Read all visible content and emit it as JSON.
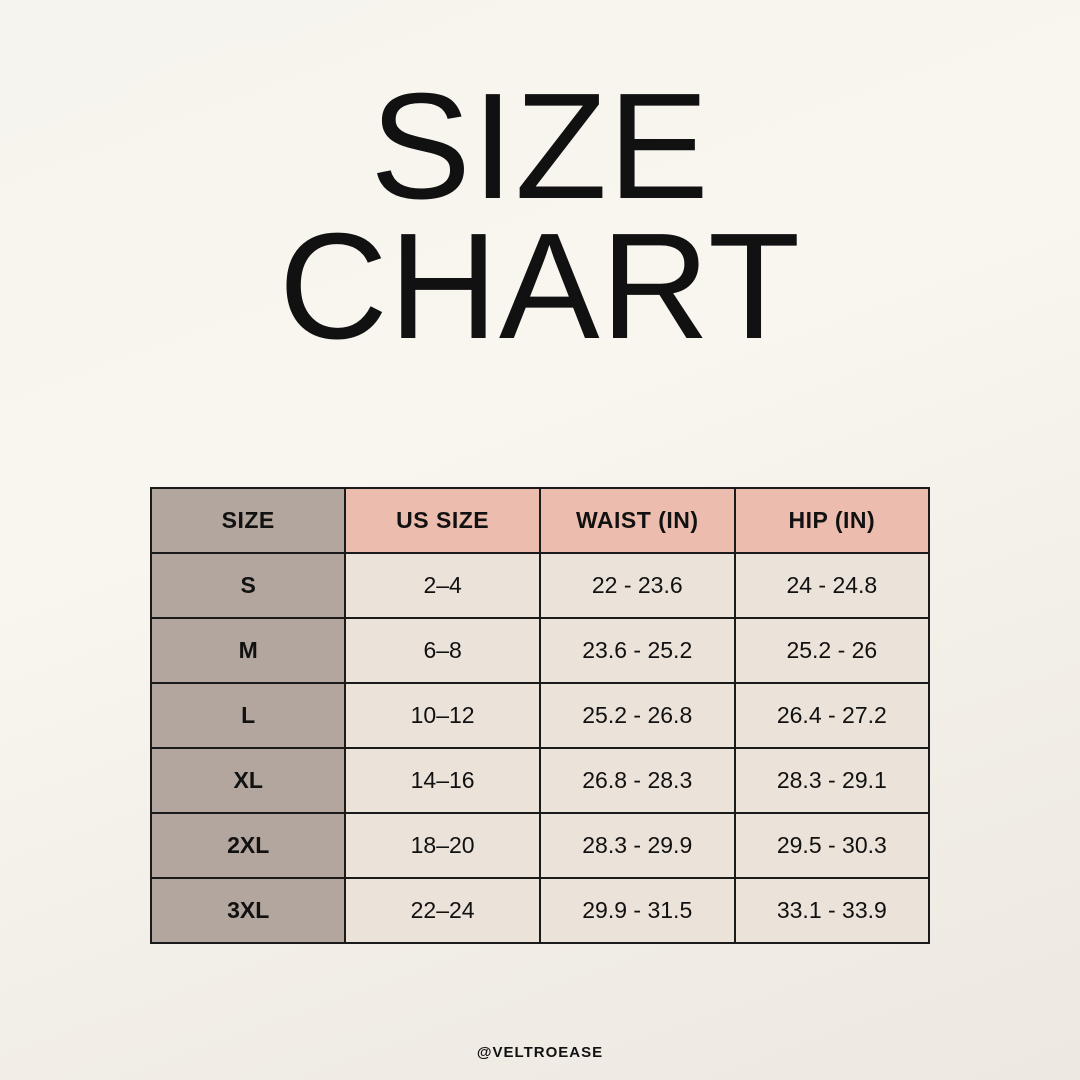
{
  "title": {
    "line1": "SIZE",
    "line2": "CHART"
  },
  "table": {
    "headers": [
      "SIZE",
      "US SIZE",
      "WAIST (IN)",
      "HIP (IN)"
    ],
    "rows": [
      [
        "S",
        "2–4",
        "22 - 23.6",
        "24 - 24.8"
      ],
      [
        "M",
        "6–8",
        "23.6 - 25.2",
        "25.2 - 26"
      ],
      [
        "L",
        "10–12",
        "25.2 - 26.8",
        "26.4 - 27.2"
      ],
      [
        "XL",
        "14–16",
        "26.8 - 28.3",
        "28.3 - 29.1"
      ],
      [
        "2XL",
        "18–20",
        "28.3 - 29.9",
        "29.5 - 30.3"
      ],
      [
        "3XL",
        "22–24",
        "29.9 - 31.5",
        "33.1 - 33.9"
      ]
    ]
  },
  "colors": {
    "size_column": "#b3a69e",
    "header": "#ecbdae",
    "cell": "#ebe3d9"
  },
  "footer": {
    "handle": "@VELTROEASE"
  }
}
